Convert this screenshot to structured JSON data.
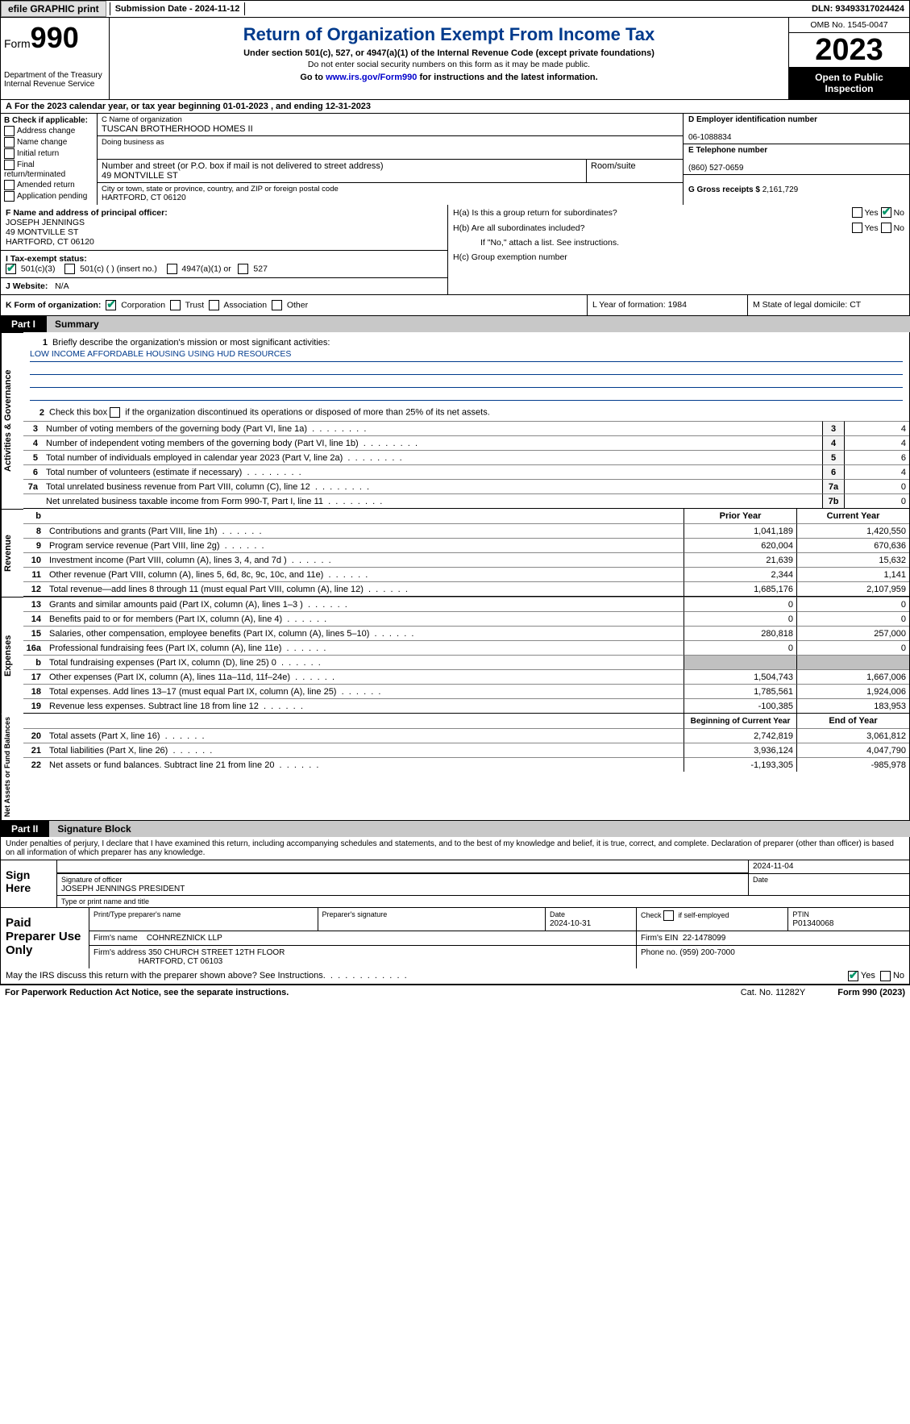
{
  "topbar": {
    "efile_btn": "efile GRAPHIC print",
    "submission": "Submission Date - 2024-11-12",
    "dln": "DLN: 93493317024424"
  },
  "header": {
    "form_prefix": "Form",
    "form_no": "990",
    "dept": "Department of the Treasury\nInternal Revenue Service",
    "title": "Return of Organization Exempt From Income Tax",
    "subtitle": "Under section 501(c), 527, or 4947(a)(1) of the Internal Revenue Code (except private foundations)",
    "note1": "Do not enter social security numbers on this form as it may be made public.",
    "goto_prefix": "Go to ",
    "goto_url": "www.irs.gov/Form990",
    "goto_suffix": " for instructions and the latest information.",
    "omb": "OMB No. 1545-0047",
    "year": "2023",
    "open": "Open to Public Inspection"
  },
  "rowA": "For the 2023 calendar year, or tax year beginning 01-01-2023   , and ending 12-31-2023",
  "boxB": {
    "title": "B Check if applicable:",
    "items": [
      "Address change",
      "Name change",
      "Initial return",
      "Final return/terminated",
      "Amended return",
      "Application pending"
    ]
  },
  "boxC": {
    "name_lbl": "C Name of organization",
    "name": "TUSCAN BROTHERHOOD HOMES II",
    "dba_lbl": "Doing business as",
    "addr_lbl": "Number and street (or P.O. box if mail is not delivered to street address)",
    "addr": "49 MONTVILLE ST",
    "room_lbl": "Room/suite",
    "city_lbl": "City or town, state or province, country, and ZIP or foreign postal code",
    "city": "HARTFORD, CT  06120"
  },
  "boxD": {
    "lbl": "D Employer identification number",
    "val": "06-1088834"
  },
  "boxE": {
    "lbl": "E Telephone number",
    "val": "(860) 527-0659"
  },
  "boxG": {
    "lbl": "G Gross receipts $",
    "val": "2,161,729"
  },
  "boxF": {
    "lbl": "F  Name and address of principal officer:",
    "name": "JOSEPH JENNINGS",
    "addr1": "49 MONTVILLE ST",
    "addr2": "HARTFORD, CT  06120"
  },
  "boxH": {
    "a": "H(a)  Is this a group return for subordinates?",
    "b": "H(b)  Are all subordinates included?",
    "b_note": "If \"No,\" attach a list. See instructions.",
    "c": "H(c)  Group exemption number"
  },
  "rowI": {
    "lbl": "I   Tax-exempt status:",
    "opts": [
      "501(c)(3)",
      "501(c) (  ) (insert no.)",
      "4947(a)(1) or",
      "527"
    ]
  },
  "rowJ": {
    "lbl": "J   Website:",
    "val": "N/A"
  },
  "rowK": {
    "lbl": "K Form of organization:",
    "opts": [
      "Corporation",
      "Trust",
      "Association",
      "Other"
    ],
    "L": "L Year of formation: 1984",
    "M": "M State of legal domicile: CT"
  },
  "part1": {
    "pt": "Part I",
    "ttl": "Summary"
  },
  "mission": {
    "q": "Briefly describe the organization's mission or most significant activities:",
    "a": "LOW INCOME AFFORDABLE HOUSING USING HUD RESOURCES"
  },
  "line2": "Check this box      if the organization discontinued its operations or disposed of more than 25% of its net assets.",
  "gov_lines": [
    {
      "n": "3",
      "t": "Number of voting members of the governing body (Part VI, line 1a)",
      "c": "3",
      "v": "4"
    },
    {
      "n": "4",
      "t": "Number of independent voting members of the governing body (Part VI, line 1b)",
      "c": "4",
      "v": "4"
    },
    {
      "n": "5",
      "t": "Total number of individuals employed in calendar year 2023 (Part V, line 2a)",
      "c": "5",
      "v": "6"
    },
    {
      "n": "6",
      "t": "Total number of volunteers (estimate if necessary)",
      "c": "6",
      "v": "4"
    },
    {
      "n": "7a",
      "t": "Total unrelated business revenue from Part VIII, column (C), line 12",
      "c": "7a",
      "v": "0"
    },
    {
      "n": "",
      "t": "Net unrelated business taxable income from Form 990-T, Part I, line 11",
      "c": "7b",
      "v": "0"
    }
  ],
  "fin_hdr": {
    "prior": "Prior Year",
    "curr": "Current Year",
    "beg": "Beginning of Current Year",
    "end": "End of Year"
  },
  "revenue": [
    {
      "n": "8",
      "t": "Contributions and grants (Part VIII, line 1h)",
      "p": "1,041,189",
      "c": "1,420,550"
    },
    {
      "n": "9",
      "t": "Program service revenue (Part VIII, line 2g)",
      "p": "620,004",
      "c": "670,636"
    },
    {
      "n": "10",
      "t": "Investment income (Part VIII, column (A), lines 3, 4, and 7d )",
      "p": "21,639",
      "c": "15,632"
    },
    {
      "n": "11",
      "t": "Other revenue (Part VIII, column (A), lines 5, 6d, 8c, 9c, 10c, and 11e)",
      "p": "2,344",
      "c": "1,141"
    },
    {
      "n": "12",
      "t": "Total revenue—add lines 8 through 11 (must equal Part VIII, column (A), line 12)",
      "p": "1,685,176",
      "c": "2,107,959"
    }
  ],
  "expenses": [
    {
      "n": "13",
      "t": "Grants and similar amounts paid (Part IX, column (A), lines 1–3 )",
      "p": "0",
      "c": "0"
    },
    {
      "n": "14",
      "t": "Benefits paid to or for members (Part IX, column (A), line 4)",
      "p": "0",
      "c": "0"
    },
    {
      "n": "15",
      "t": "Salaries, other compensation, employee benefits (Part IX, column (A), lines 5–10)",
      "p": "280,818",
      "c": "257,000"
    },
    {
      "n": "16a",
      "t": "Professional fundraising fees (Part IX, column (A), line 11e)",
      "p": "0",
      "c": "0"
    },
    {
      "n": "b",
      "t": "Total fundraising expenses (Part IX, column (D), line 25) 0",
      "p": "",
      "c": "",
      "shade": true
    },
    {
      "n": "17",
      "t": "Other expenses (Part IX, column (A), lines 11a–11d, 11f–24e)",
      "p": "1,504,743",
      "c": "1,667,006"
    },
    {
      "n": "18",
      "t": "Total expenses. Add lines 13–17 (must equal Part IX, column (A), line 25)",
      "p": "1,785,561",
      "c": "1,924,006"
    },
    {
      "n": "19",
      "t": "Revenue less expenses. Subtract line 18 from line 12",
      "p": "-100,385",
      "c": "183,953"
    }
  ],
  "netassets": [
    {
      "n": "20",
      "t": "Total assets (Part X, line 16)",
      "p": "2,742,819",
      "c": "3,061,812"
    },
    {
      "n": "21",
      "t": "Total liabilities (Part X, line 26)",
      "p": "3,936,124",
      "c": "4,047,790"
    },
    {
      "n": "22",
      "t": "Net assets or fund balances. Subtract line 21 from line 20",
      "p": "-1,193,305",
      "c": "-985,978"
    }
  ],
  "vlabels": {
    "gov": "Activities & Governance",
    "rev": "Revenue",
    "exp": "Expenses",
    "net": "Net Assets or Fund Balances"
  },
  "part2": {
    "pt": "Part II",
    "ttl": "Signature Block"
  },
  "sig": {
    "penalty": "Under penalties of perjury, I declare that I have examined this return, including accompanying schedules and statements, and to the best of my knowledge and belief, it is true, correct, and complete. Declaration of preparer (other than officer) is based on all information of which preparer has any knowledge.",
    "sign_here": "Sign Here",
    "sig_off": "Signature of officer",
    "officer": "JOSEPH JENNINGS  PRESIDENT",
    "type_lbl": "Type or print name and title",
    "date_lbl": "Date",
    "sig_date": "2024-11-04"
  },
  "prep": {
    "lbl": "Paid Preparer Use Only",
    "name_lbl": "Print/Type preparer's name",
    "sig_lbl": "Preparer's signature",
    "date_lbl": "Date",
    "date": "2024-10-31",
    "check_lbl": "Check         if self-employed",
    "ptin_lbl": "PTIN",
    "ptin": "P01340068",
    "firm_name_lbl": "Firm's name",
    "firm_name": "COHNREZNICK LLP",
    "firm_ein_lbl": "Firm's EIN",
    "firm_ein": "22-1478099",
    "firm_addr_lbl": "Firm's address",
    "firm_addr1": "350 CHURCH STREET 12TH FLOOR",
    "firm_addr2": "HARTFORD, CT  06103",
    "phone_lbl": "Phone no.",
    "phone": "(959) 200-7000"
  },
  "discuss": "May the IRS discuss this return with the preparer shown above? See Instructions.",
  "footer": {
    "l": "For Paperwork Reduction Act Notice, see the separate instructions.",
    "m": "Cat. No. 11282Y",
    "r": "Form 990 (2023)"
  }
}
